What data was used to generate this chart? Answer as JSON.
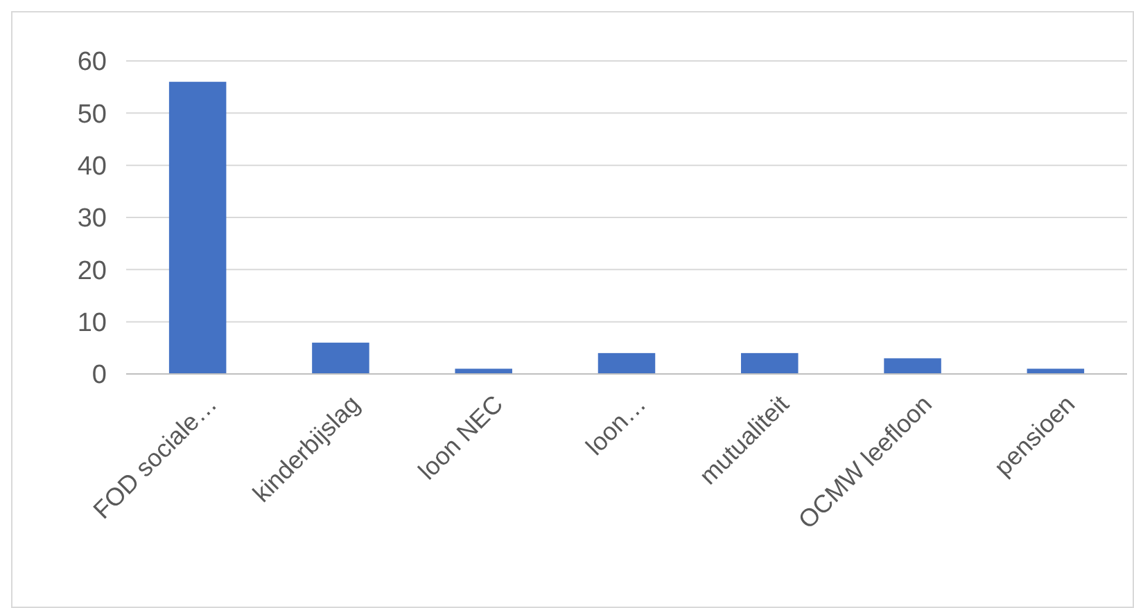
{
  "chart_data": {
    "type": "bar",
    "categories": [
      "FOD sociale…",
      "kinderbijslag",
      "loon NEC",
      "loon…",
      "mutualiteit",
      "OCMW leefloon",
      "pensioen"
    ],
    "values": [
      56,
      6,
      1,
      4,
      4,
      3,
      1
    ],
    "color": "#4472c4",
    "ylim": [
      0,
      60
    ],
    "yticks": [
      0,
      10,
      20,
      30,
      40,
      50,
      60
    ],
    "grid": "y"
  }
}
